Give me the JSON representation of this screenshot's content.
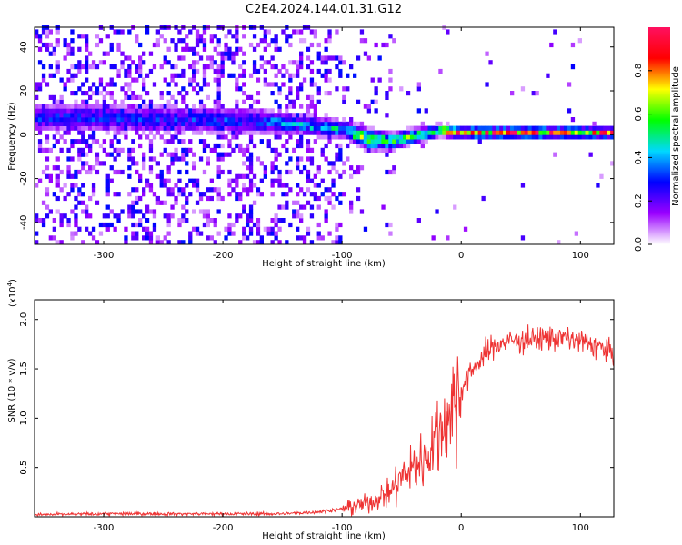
{
  "title": "C2E4.2024.144.01.31.G12",
  "chart_data": [
    {
      "type": "heatmap",
      "xlabel": "Height of straight line (km)",
      "ylabel": "Frequency (Hz)",
      "xlim": [
        -358,
        128
      ],
      "ylim": [
        -50,
        49
      ],
      "xticks": [
        -300,
        -200,
        -100,
        0,
        100
      ],
      "yticks": [
        -40,
        -20,
        0,
        20,
        40
      ],
      "colorbar": {
        "label": "Normalized spectral amplitude",
        "range": [
          0.0,
          1.0
        ],
        "ticks": [
          0.0,
          0.2,
          0.4,
          0.6,
          0.8
        ],
        "colormap": [
          "#ffffff",
          "#9a00ff",
          "#0000ff",
          "#00d8ff",
          "#00ff00",
          "#ffff00",
          "#ff0000",
          "#ff1060"
        ]
      },
      "band": [
        {
          "x": -320,
          "center_hz": 7.0,
          "width_hz": 10,
          "peak_amplitude": 0.3
        },
        {
          "x": -250,
          "center_hz": 6.0,
          "width_hz": 10,
          "peak_amplitude": 0.3
        },
        {
          "x": -180,
          "center_hz": 5.5,
          "width_hz": 9,
          "peak_amplitude": 0.32
        },
        {
          "x": -140,
          "center_hz": 4.0,
          "width_hz": 7,
          "peak_amplitude": 0.42
        },
        {
          "x": -100,
          "center_hz": 1.5,
          "width_hz": 6,
          "peak_amplitude": 0.5
        },
        {
          "x": -80,
          "center_hz": -3.0,
          "width_hz": 7,
          "peak_amplitude": 0.7
        },
        {
          "x": -60,
          "center_hz": -4.0,
          "width_hz": 6,
          "peak_amplitude": 0.55
        },
        {
          "x": -40,
          "center_hz": -1.5,
          "width_hz": 5,
          "peak_amplitude": 0.6
        },
        {
          "x": -20,
          "center_hz": 1.0,
          "width_hz": 4,
          "peak_amplitude": 0.7
        },
        {
          "x": 0,
          "center_hz": 0.0,
          "width_hz": 4,
          "peak_amplitude": 0.85
        },
        {
          "x": 50,
          "center_hz": 0.0,
          "width_hz": 4,
          "peak_amplitude": 0.88
        },
        {
          "x": 128,
          "center_hz": 0.0,
          "width_hz": 4,
          "peak_amplitude": 0.8
        }
      ]
    },
    {
      "type": "line",
      "xlabel": "Height of straight line (km)",
      "ylabel": "SNR (10 * v/v)",
      "y_multiplier": "(x10",
      "y_multiplier_exp": "4",
      "xlim": [
        -358,
        128
      ],
      "ylim": [
        0,
        2.2
      ],
      "xticks": [
        -300,
        -200,
        -100,
        0,
        100
      ],
      "yticks": [
        0.5,
        1.0,
        1.5,
        2.0
      ],
      "ytick_labels": [
        "0.5",
        "1.0",
        "1.5",
        "2.0"
      ],
      "series": [
        {
          "color": "#ee3333",
          "x": [
            -358,
            -300,
            -250,
            -200,
            -150,
            -120,
            -100,
            -80,
            -60,
            -50,
            -40,
            -30,
            -20,
            -10,
            0,
            10,
            20,
            30,
            40,
            60,
            80,
            100,
            120,
            128
          ],
          "y": [
            0.02,
            0.03,
            0.03,
            0.03,
            0.03,
            0.05,
            0.08,
            0.13,
            0.25,
            0.4,
            0.5,
            0.6,
            0.85,
            1.05,
            1.3,
            1.5,
            1.65,
            1.75,
            1.78,
            1.8,
            1.82,
            1.78,
            1.7,
            1.65
          ]
        }
      ]
    }
  ]
}
